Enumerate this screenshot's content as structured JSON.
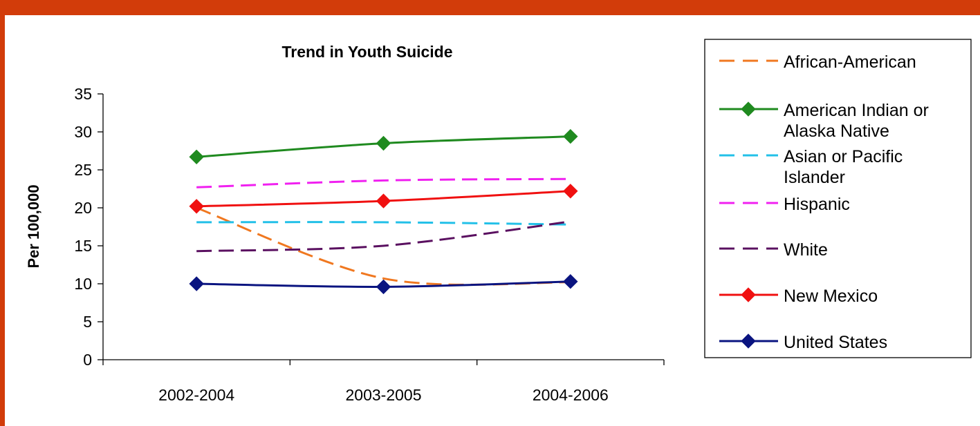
{
  "chart_data": {
    "type": "line",
    "title": "Trend in Youth Suicide",
    "xlabel": "",
    "ylabel": "Per 100,000",
    "categories": [
      "2002-2004",
      "2003-2005",
      "2004-2006"
    ],
    "ylim": [
      0,
      35
    ],
    "yticks": [
      0,
      5,
      10,
      15,
      20,
      25,
      30,
      35
    ],
    "grid": false,
    "legend_position": "right",
    "series": [
      {
        "name": "African-American",
        "legend_lines": [
          "African-American"
        ],
        "values": [
          20.0,
          10.7,
          10.2
        ],
        "color": "#F07820",
        "dashed": true,
        "marker": false
      },
      {
        "name": "American Indian or Alaska Native",
        "legend_lines": [
          "American Indian or",
          "Alaska Native"
        ],
        "values": [
          26.7,
          28.5,
          29.4
        ],
        "color": "#1F8A1F",
        "dashed": false,
        "marker": true
      },
      {
        "name": "Asian or Pacific Islander",
        "legend_lines": [
          "Asian or Pacific",
          "Islander"
        ],
        "values": [
          18.1,
          18.1,
          17.8
        ],
        "color": "#22C0E8",
        "dashed": true,
        "marker": false
      },
      {
        "name": "Hispanic",
        "legend_lines": [
          "Hispanic"
        ],
        "values": [
          22.7,
          23.6,
          23.8
        ],
        "color": "#F020F0",
        "dashed": true,
        "marker": false
      },
      {
        "name": "White",
        "legend_lines": [
          "White"
        ],
        "values": [
          14.3,
          15.0,
          18.2
        ],
        "color": "#5A1060",
        "dashed": true,
        "marker": false
      },
      {
        "name": "New Mexico",
        "legend_lines": [
          "New Mexico"
        ],
        "values": [
          20.2,
          20.9,
          22.2
        ],
        "color": "#F01010",
        "dashed": false,
        "marker": true
      },
      {
        "name": "United States",
        "legend_lines": [
          "United States"
        ],
        "values": [
          10.0,
          9.6,
          10.3
        ],
        "color": "#0A1480",
        "dashed": false,
        "marker": true
      }
    ]
  },
  "theme": {
    "border_color": "#D23C0A"
  }
}
